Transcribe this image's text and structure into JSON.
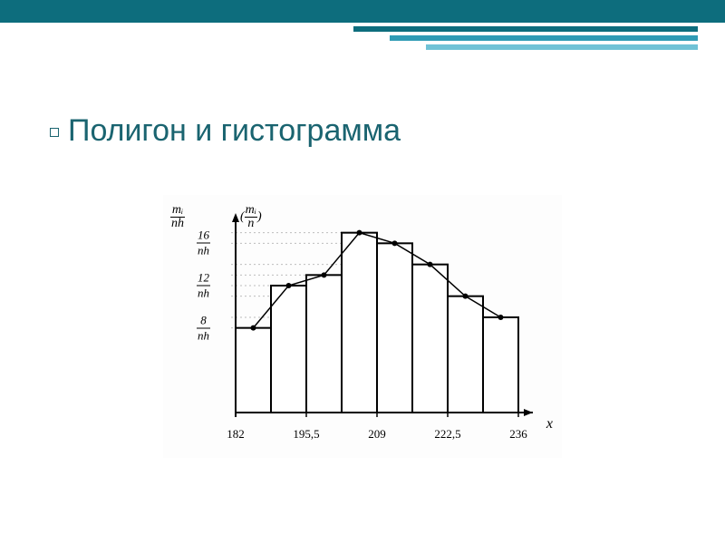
{
  "slide": {
    "title": "Полигон и гистограмма",
    "decoration_colors": [
      "#0d6d7d",
      "#2f9bb5",
      "#70c2d6"
    ],
    "title_color": "#1a6470",
    "title_fontsize": 34
  },
  "chart": {
    "type": "histogram+polygon",
    "background_color": "#fdfdfd",
    "axis_color": "#000000",
    "bar_stroke": "#000000",
    "bar_fill": "#ffffff",
    "bar_stroke_width": 2,
    "polygon_color": "#000000",
    "polygon_width": 1.5,
    "marker_radius": 3,
    "gridline_color": "#bdbdbd",
    "y_label_outer": {
      "num": "mᵢ",
      "den": "nh"
    },
    "y_label_top": {
      "pre": "(",
      "num": "mᵢ",
      "den": "n",
      "post": ")"
    },
    "x_label": "x",
    "y_ticks": [
      {
        "num": "8",
        "den": "nh",
        "value": 8
      },
      {
        "num": "12",
        "den": "nh",
        "value": 12
      },
      {
        "num": "16",
        "den": "nh",
        "value": 16
      }
    ],
    "x_ticks": [
      {
        "label": "182",
        "value": 182
      },
      {
        "label": "195,5",
        "value": 195.5
      },
      {
        "label": "209",
        "value": 209
      },
      {
        "label": "222,5",
        "value": 222.5
      },
      {
        "label": "236",
        "value": 236
      }
    ],
    "x_range": [
      182,
      236
    ],
    "y_range": [
      0,
      18
    ],
    "bar_width_x": 6.75,
    "bars": [
      {
        "x_left": 182,
        "height": 8
      },
      {
        "x_left": 188.75,
        "height": 12
      },
      {
        "x_left": 195.5,
        "height": 13
      },
      {
        "x_left": 202.25,
        "height": 17
      },
      {
        "x_left": 209,
        "height": 16
      },
      {
        "x_left": 215.75,
        "height": 14
      },
      {
        "x_left": 222.5,
        "height": 11
      },
      {
        "x_left": 229.25,
        "height": 9
      }
    ],
    "polygon_points": [
      {
        "x": 185.375,
        "y": 8
      },
      {
        "x": 192.125,
        "y": 12
      },
      {
        "x": 198.875,
        "y": 13
      },
      {
        "x": 205.625,
        "y": 17
      },
      {
        "x": 212.375,
        "y": 16
      },
      {
        "x": 219.125,
        "y": 14
      },
      {
        "x": 225.875,
        "y": 11
      },
      {
        "x": 232.625,
        "y": 9
      }
    ]
  }
}
